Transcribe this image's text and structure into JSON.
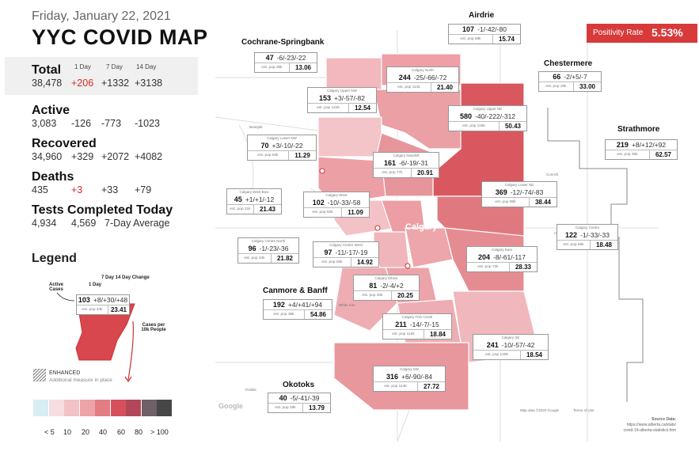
{
  "header": {
    "date": "Friday, January 22, 2021",
    "title": "YYC COVID MAP"
  },
  "stats": {
    "col_1day": "1 Day",
    "col_7day": "7 Day",
    "col_14day": "14 Day",
    "total": {
      "label": "Total",
      "value": "38,478",
      "d1": "+206",
      "d7": "+1332",
      "d14": "+3138"
    },
    "active": {
      "label": "Active",
      "value": "3,083",
      "d1": "-126",
      "d7": "-773",
      "d14": "-1023"
    },
    "recovered": {
      "label": "Recovered",
      "value": "34,960",
      "d1": "+329",
      "d7": "+2072",
      "d14": "+4082"
    },
    "deaths": {
      "label": "Deaths",
      "value": "435",
      "d1": "+3",
      "d7": "+33",
      "d14": "+79"
    },
    "tests": {
      "label": "Tests Completed Today",
      "value": "4,934",
      "avg": "4,569",
      "avg_label": "7-Day Average"
    }
  },
  "legend": {
    "title": "Legend",
    "active_cases": "Active Cases",
    "one_day": "1 Day",
    "seven_fourteen": "7 Day  14 Day Change",
    "cases_per": "Cases per 10k People",
    "example_cases": "103",
    "example_change": "+8/+30/+48",
    "example_pop": "est. pop 44k",
    "example_rate": "23.41",
    "enhanced": "ENHANCED",
    "enhanced_sub": "Additional measure in place",
    "scale_colors": [
      "#d6eef4",
      "#f5dde0",
      "#f2c2c6",
      "#eda3a8",
      "#e27d83",
      "#d5505a",
      "#b3475a",
      "#6f5f66",
      "#474747"
    ],
    "scale_labels": [
      "< 5",
      "10",
      "20",
      "40",
      "60",
      "80",
      "> 100"
    ]
  },
  "positivity": {
    "label": "Positivity Rate",
    "value": "5.53%"
  },
  "areas": {
    "airdrie": "Airdrie",
    "cochrane": "Cochrane-Springbank",
    "chestermere": "Chestermere",
    "strathmore": "Strathmore",
    "canmore": "Canmore & Banff",
    "okotoks": "Okotoks",
    "calgary": "Calgary"
  },
  "zones": [
    {
      "name": "",
      "cases": "107",
      "chg": "-1/-42/-80",
      "pop": "est. pop 68k",
      "rate": "15.74"
    },
    {
      "name": "",
      "cases": "47",
      "chg": "-6/-23/-22",
      "pop": "est. pop 36k",
      "rate": "13.06"
    },
    {
      "name": "Calgary North",
      "cases": "244",
      "chg": "-25/-66/-72",
      "pop": "est. pop 114k",
      "rate": "21.40"
    },
    {
      "name": "",
      "cases": "66",
      "chg": "-2/+5/-7",
      "pop": "est. pop 20k",
      "rate": "33.00"
    },
    {
      "name": "Calgary Upper NW",
      "cases": "153",
      "chg": "+3/-57/-82",
      "pop": "est. pop 122k",
      "rate": "12.54"
    },
    {
      "name": "Calgary Upper NE",
      "cases": "580",
      "chg": "-40/-222/-312",
      "pop": "est. pop 115k",
      "rate": "50.43"
    },
    {
      "name": "Calgary Lower NW",
      "cases": "70",
      "chg": "+3/-10/-22",
      "pop": "est. pop 62k",
      "rate": "11.29"
    },
    {
      "name": "Calgary Nosehill",
      "cases": "161",
      "chg": "-6/-19/-31",
      "pop": "est. pop 77k",
      "rate": "20.91"
    },
    {
      "name": "",
      "cases": "219",
      "chg": "+8/+12/+92",
      "pop": "est. pop 35k",
      "rate": "62.57"
    },
    {
      "name": "Calgary West Bow",
      "cases": "45",
      "chg": "+1/+1/-12",
      "pop": "est. pop 21k",
      "rate": "21.43"
    },
    {
      "name": "Calgary West",
      "cases": "102",
      "chg": "-10/-33/-58",
      "pop": "est. pop 92k",
      "rate": "11.09"
    },
    {
      "name": "Calgary Lower NE",
      "cases": "369",
      "chg": "-12/-74/-83",
      "pop": "est. pop 96k",
      "rate": "38.44"
    },
    {
      "name": "Calgary Centre",
      "cases": "122",
      "chg": "-1/-33/-33",
      "pop": "est. pop 66k",
      "rate": "18.48"
    },
    {
      "name": "Calgary Centre North",
      "cases": "96",
      "chg": "-1/-23/-36",
      "pop": "est. pop 44k",
      "rate": "21.82"
    },
    {
      "name": "Calgary Centre West",
      "cases": "97",
      "chg": "-11/-17/-19",
      "pop": "est. pop 65k",
      "rate": "14.92"
    },
    {
      "name": "Calgary East",
      "cases": "204",
      "chg": "-8/-61/-117",
      "pop": "est. pop 72k",
      "rate": "28.33"
    },
    {
      "name": "Calgary Elbow",
      "cases": "81",
      "chg": "-2/-4/+2",
      "pop": "est. pop 40k",
      "rate": "20.25"
    },
    {
      "name": "",
      "cases": "192",
      "chg": "+4/+41/+94",
      "pop": "est. pop 35k",
      "rate": "54.86"
    },
    {
      "name": "Calgary Fish Creek",
      "cases": "211",
      "chg": "-14/-7/-15",
      "pop": "est. pop 112k",
      "rate": "18.84"
    },
    {
      "name": "Calgary SE",
      "cases": "241",
      "chg": "-10/-57/-42",
      "pop": "est. pop 130k",
      "rate": "18.54"
    },
    {
      "name": "Calgary SW",
      "cases": "316",
      "chg": "+6/-90/-84",
      "pop": "est. pop 114k",
      "rate": "27.72"
    },
    {
      "name": "",
      "cases": "40",
      "chg": "-5/-41/-39",
      "pop": "est. pop 29k",
      "rate": "13.79"
    }
  ],
  "map_labels": {
    "google": "Google",
    "map_credit": "Map data ©2020 Google",
    "terms": "Terms of Use",
    "source_title": "Source Data:",
    "source_line1": "https://www.alberta.ca/stats/",
    "source_line2": "covid-19-alberta-statistics.htm",
    "place_priddis": "Priddis",
    "place_whitekim": "White Kim",
    "place_beanjab": "Beanjab",
    "place_conrich": "Conrich",
    "place_chestermere": "Cheste"
  }
}
